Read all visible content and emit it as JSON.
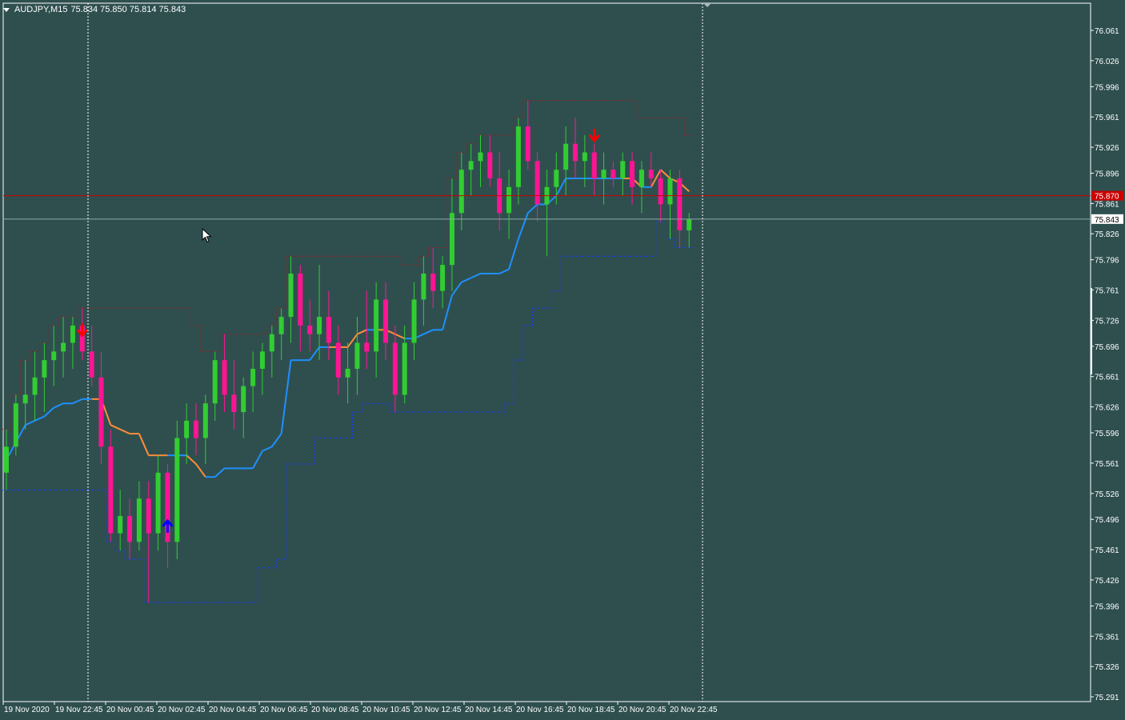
{
  "window": {
    "symbol": "AUDJPY,M15",
    "ohlc": "75.834 75.850 75.814 75.843"
  },
  "colors": {
    "background": "#2f4f4f",
    "bull": "#32cd32",
    "bear": "#ff1493",
    "baseline_up": "#1e90ff",
    "baseline_down": "#ff8c3a",
    "upper_band": "#8b2020",
    "lower_band": "#1a3aff",
    "ask_line": "#cc0000",
    "bid_line": "#8fa7a7",
    "up_arrow": "#0000ff",
    "down_arrow": "#ff0000",
    "axis": "#ffffff"
  },
  "price_axis": {
    "ticks": [
      "76.061",
      "76.026",
      "75.996",
      "75.961",
      "75.926",
      "75.896",
      "75.861",
      "75.826",
      "75.796",
      "75.761",
      "75.726",
      "75.696",
      "75.661",
      "75.626",
      "75.596",
      "75.561",
      "75.526",
      "75.496",
      "75.461",
      "75.426",
      "75.396",
      "75.361",
      "75.326",
      "75.291"
    ],
    "ask_label": "75.870",
    "bid_label": "75.843"
  },
  "time_axis": {
    "ticks": [
      "19 Nov 2020",
      "19 Nov 22:45",
      "20 Nov 00:45",
      "20 Nov 02:45",
      "20 Nov 04:45",
      "20 Nov 06:45",
      "20 Nov 08:45",
      "20 Nov 10:45",
      "20 Nov 12:45",
      "20 Nov 14:45",
      "20 Nov 16:45",
      "20 Nov 18:45",
      "20 Nov 20:45",
      "20 Nov 22:45"
    ]
  },
  "chart_data": {
    "type": "candlestick",
    "symbol": "AUDJPY",
    "timeframe": "M15",
    "ylim": [
      75.291,
      76.061
    ],
    "grid": false,
    "ask": 75.87,
    "bid": 75.843,
    "candles": [
      [
        75.55,
        75.6,
        75.53,
        75.58
      ],
      [
        75.58,
        75.64,
        75.57,
        75.63
      ],
      [
        75.63,
        75.68,
        75.6,
        75.64
      ],
      [
        75.64,
        75.69,
        75.61,
        75.66
      ],
      [
        75.66,
        75.7,
        75.62,
        75.68
      ],
      [
        75.68,
        75.72,
        75.65,
        75.69
      ],
      [
        75.69,
        75.73,
        75.66,
        75.7
      ],
      [
        75.7,
        75.73,
        75.67,
        75.72
      ],
      [
        75.72,
        75.74,
        75.68,
        75.69
      ],
      [
        75.69,
        75.72,
        75.65,
        75.66
      ],
      [
        75.66,
        75.69,
        75.56,
        75.58
      ],
      [
        75.58,
        75.6,
        75.47,
        75.48
      ],
      [
        75.48,
        75.53,
        75.46,
        75.5
      ],
      [
        75.5,
        75.52,
        75.45,
        75.47
      ],
      [
        75.47,
        75.54,
        75.46,
        75.52
      ],
      [
        75.52,
        75.54,
        75.4,
        75.48
      ],
      [
        75.48,
        75.57,
        75.46,
        75.55
      ],
      [
        75.55,
        75.56,
        75.44,
        75.47
      ],
      [
        75.47,
        75.61,
        75.45,
        75.59
      ],
      [
        75.59,
        75.63,
        75.56,
        75.61
      ],
      [
        75.61,
        75.63,
        75.57,
        75.59
      ],
      [
        75.59,
        75.64,
        75.56,
        75.63
      ],
      [
        75.63,
        75.69,
        75.61,
        75.68
      ],
      [
        75.68,
        75.71,
        75.62,
        75.64
      ],
      [
        75.64,
        75.68,
        75.6,
        75.62
      ],
      [
        75.62,
        75.66,
        75.59,
        75.65
      ],
      [
        75.65,
        75.69,
        75.62,
        75.67
      ],
      [
        75.67,
        75.7,
        75.64,
        75.69
      ],
      [
        75.69,
        75.72,
        75.66,
        75.71
      ],
      [
        75.71,
        75.74,
        75.68,
        75.73
      ],
      [
        75.73,
        75.8,
        75.7,
        75.78
      ],
      [
        75.78,
        75.79,
        75.69,
        75.72
      ],
      [
        75.72,
        75.75,
        75.69,
        75.71
      ],
      [
        75.71,
        75.79,
        75.68,
        75.73
      ],
      [
        75.73,
        75.76,
        75.68,
        75.7
      ],
      [
        75.7,
        75.72,
        75.64,
        75.66
      ],
      [
        75.66,
        75.7,
        75.63,
        75.67
      ],
      [
        75.67,
        75.73,
        75.64,
        75.7
      ],
      [
        75.7,
        75.76,
        75.67,
        75.69
      ],
      [
        75.69,
        75.77,
        75.66,
        75.75
      ],
      [
        75.75,
        75.77,
        75.68,
        75.7
      ],
      [
        75.7,
        75.72,
        75.62,
        75.64
      ],
      [
        75.64,
        75.72,
        75.63,
        75.7
      ],
      [
        75.7,
        75.77,
        75.68,
        75.75
      ],
      [
        75.75,
        75.8,
        75.72,
        75.78
      ],
      [
        75.78,
        75.81,
        75.74,
        75.76
      ],
      [
        75.76,
        75.8,
        75.74,
        75.79
      ],
      [
        75.79,
        75.89,
        75.76,
        75.85
      ],
      [
        75.85,
        75.92,
        75.83,
        75.9
      ],
      [
        75.9,
        75.93,
        75.87,
        75.91
      ],
      [
        75.91,
        75.94,
        75.88,
        75.92
      ],
      [
        75.92,
        75.94,
        75.88,
        75.89
      ],
      [
        75.89,
        75.92,
        75.83,
        75.85
      ],
      [
        75.85,
        75.9,
        75.82,
        75.88
      ],
      [
        75.88,
        75.96,
        75.86,
        75.95
      ],
      [
        75.95,
        75.98,
        75.9,
        75.91
      ],
      [
        75.91,
        75.92,
        75.84,
        75.86
      ],
      [
        75.86,
        75.9,
        75.8,
        75.88
      ],
      [
        75.88,
        75.92,
        75.86,
        75.9
      ],
      [
        75.9,
        75.95,
        75.87,
        75.93
      ],
      [
        75.93,
        75.96,
        75.89,
        75.91
      ],
      [
        75.91,
        75.94,
        75.88,
        75.92
      ],
      [
        75.92,
        75.93,
        75.87,
        75.89
      ],
      [
        75.89,
        75.92,
        75.86,
        75.9
      ],
      [
        75.9,
        75.91,
        75.88,
        75.89
      ],
      [
        75.89,
        75.92,
        75.87,
        75.91
      ],
      [
        75.91,
        75.92,
        75.86,
        75.88
      ],
      [
        75.88,
        75.91,
        75.85,
        75.9
      ],
      [
        75.9,
        75.92,
        75.88,
        75.89
      ],
      [
        75.89,
        75.9,
        75.84,
        75.86
      ],
      [
        75.86,
        75.9,
        75.82,
        75.89
      ],
      [
        75.89,
        75.9,
        75.81,
        75.83
      ],
      [
        75.83,
        75.85,
        75.81,
        75.843
      ]
    ],
    "signals": [
      {
        "type": "sell",
        "bar": 8,
        "price": 75.715
      },
      {
        "type": "buy",
        "bar": 17,
        "price": 75.488
      },
      {
        "type": "sell",
        "bar": 62,
        "price": 75.94
      }
    ]
  }
}
